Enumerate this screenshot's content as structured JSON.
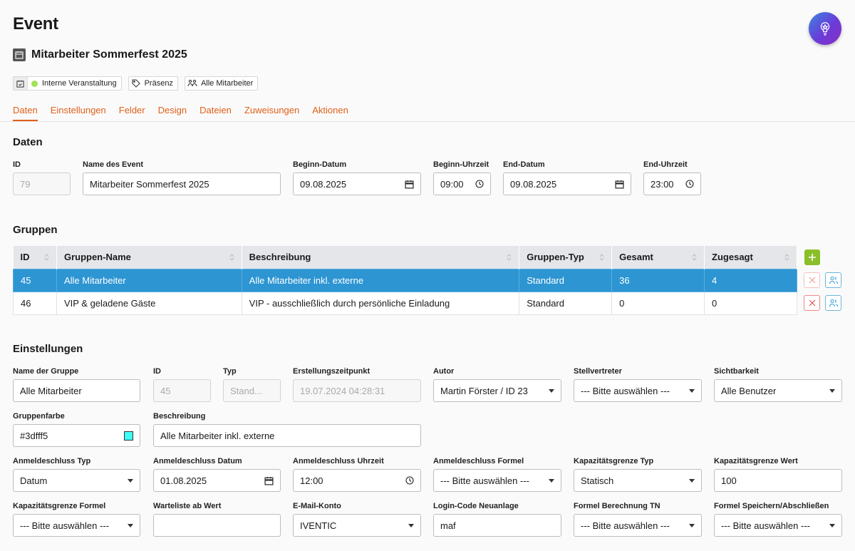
{
  "page": {
    "title": "Event"
  },
  "event": {
    "name": "Mitarbeiter Sommerfest 2025"
  },
  "chips": [
    {
      "label": "Interne Veranstaltung"
    },
    {
      "label": "Präsenz"
    },
    {
      "label": "Alle Mitarbeiter"
    }
  ],
  "tabs": [
    "Daten",
    "Einstellungen",
    "Felder",
    "Design",
    "Dateien",
    "Zuweisungen",
    "Aktionen"
  ],
  "daten": {
    "title": "Daten",
    "id_label": "ID",
    "id_value": "79",
    "name_label": "Name des Event",
    "name_value": "Mitarbeiter Sommerfest 2025",
    "begin_date_label": "Beginn-Datum",
    "begin_date_value": "09.08.2025",
    "begin_time_label": "Beginn-Uhrzeit",
    "begin_time_value": "09:00",
    "end_date_label": "End-Datum",
    "end_date_value": "09.08.2025",
    "end_time_label": "End-Uhrzeit",
    "end_time_value": "23:00"
  },
  "gruppen": {
    "title": "Gruppen",
    "columns": [
      "ID",
      "Gruppen-Name",
      "Beschreibung",
      "Gruppen-Typ",
      "Gesamt",
      "Zugesagt"
    ],
    "rows": [
      [
        "45",
        "Alle Mitarbeiter",
        "Alle Mitarbeiter inkl. externe",
        "Standard",
        "36",
        "4"
      ],
      [
        "46",
        "VIP & geladene Gäste",
        "VIP - ausschließlich durch persönliche Einladung",
        "Standard",
        "0",
        "0"
      ]
    ]
  },
  "einstellungen": {
    "title": "Einstellungen",
    "fields": {
      "gruppenname": {
        "label": "Name der Gruppe",
        "value": "Alle Mitarbeiter"
      },
      "id": {
        "label": "ID",
        "value": "45"
      },
      "typ": {
        "label": "Typ",
        "value": "Stand..."
      },
      "erstellt": {
        "label": "Erstellungszeitpunkt",
        "value": "19.07.2024 04:28:31"
      },
      "autor": {
        "label": "Autor",
        "value": "Martin Förster / ID 23"
      },
      "stellvertreter": {
        "label": "Stellvertreter",
        "value": "--- Bitte auswählen ---"
      },
      "sichtbarkeit": {
        "label": "Sichtbarkeit",
        "value": "Alle Benutzer"
      },
      "gruppenfarbe": {
        "label": "Gruppenfarbe",
        "value": "#3dfff5"
      },
      "beschreibung": {
        "label": "Beschreibung",
        "value": "Alle Mitarbeiter inkl. externe"
      },
      "anm_typ": {
        "label": "Anmeldeschluss Typ",
        "value": "Datum"
      },
      "anm_datum": {
        "label": "Anmeldeschluss Datum",
        "value": "01.08.2025"
      },
      "anm_uhrzeit": {
        "label": "Anmeldeschluss Uhrzeit",
        "value": "12:00"
      },
      "anm_formel": {
        "label": "Anmeldeschluss Formel",
        "value": "--- Bitte auswählen ---"
      },
      "kap_typ": {
        "label": "Kapazitätsgrenze Typ",
        "value": "Statisch"
      },
      "kap_wert": {
        "label": "Kapazitätsgrenze Wert",
        "value": "100"
      },
      "kap_formel": {
        "label": "Kapazitätsgrenze Formel",
        "value": "--- Bitte auswählen ---"
      },
      "warteliste": {
        "label": "Warteliste ab Wert",
        "value": ""
      },
      "email": {
        "label": "E-Mail-Konto",
        "value": "IVENTIC"
      },
      "login": {
        "label": "Login-Code Neuanlage",
        "value": "maf"
      },
      "formel_tn": {
        "label": "Formel Berechnung TN",
        "value": "--- Bitte auswählen ---"
      },
      "formel_save": {
        "label": "Formel Speichern/Abschließen",
        "value": "--- Bitte auswählen ---"
      }
    }
  },
  "colors": {
    "accent": "#e0601a",
    "selected_row": "#2d95d2",
    "add_button": "#8bbf2a",
    "group_color": "#3dfff5"
  }
}
